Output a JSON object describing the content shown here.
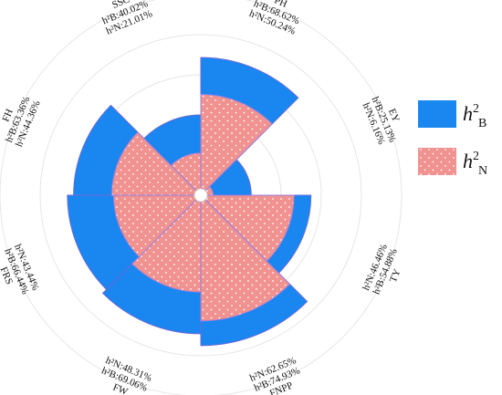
{
  "chart_data": {
    "type": "polar-bar",
    "series": [
      {
        "key": "B",
        "name": "h²B",
        "color": "#1a86f0",
        "values": [
          68.62,
          25.13,
          54.88,
          74.93,
          69.06,
          66.44,
          63.36,
          40.02
        ]
      },
      {
        "key": "N",
        "name": "h²N",
        "color": "#f0928f",
        "values": [
          50.24,
          6.16,
          46.46,
          62.65,
          48.31,
          43.44,
          44.36,
          21.01
        ]
      }
    ],
    "categories": [
      "PH",
      "EY",
      "TY",
      "FNPP",
      "FW",
      "FRS",
      "FH",
      "SSC"
    ],
    "labels": [
      {
        "trait": "PH",
        "b": "h²B:68.62%",
        "n": "h²N:50.24%"
      },
      {
        "trait": "EY",
        "b": "h²B:25.13%",
        "n": "h²N:6.16%"
      },
      {
        "trait": "TY",
        "b": "h²B:54.88%",
        "n": "h²N:46.46%"
      },
      {
        "trait": "FNPP",
        "b": "h²B:74.93%",
        "n": "h²N:62.65%"
      },
      {
        "trait": "FW",
        "b": "h²B:69.06%",
        "n": "h²N:48.31%"
      },
      {
        "trait": "FRS",
        "b": "h²B:66.44%",
        "n": "h²N:43.44%"
      },
      {
        "trait": "FH",
        "b": "h²B:63.36%",
        "n": "h²N:44.36%"
      },
      {
        "trait": "SSC",
        "b": "h²B:40.02%",
        "n": "h²N:21.01%"
      }
    ],
    "legend": {
      "position": "right",
      "items": [
        {
          "main": "h",
          "sup": "2",
          "sub": "B",
          "color": "#1a86f0"
        },
        {
          "main": "h",
          "sup": "2",
          "sub": "N",
          "color": "#f0928f"
        }
      ]
    },
    "grid": true,
    "ylim": [
      0,
      100
    ],
    "stippled_series": "N"
  }
}
